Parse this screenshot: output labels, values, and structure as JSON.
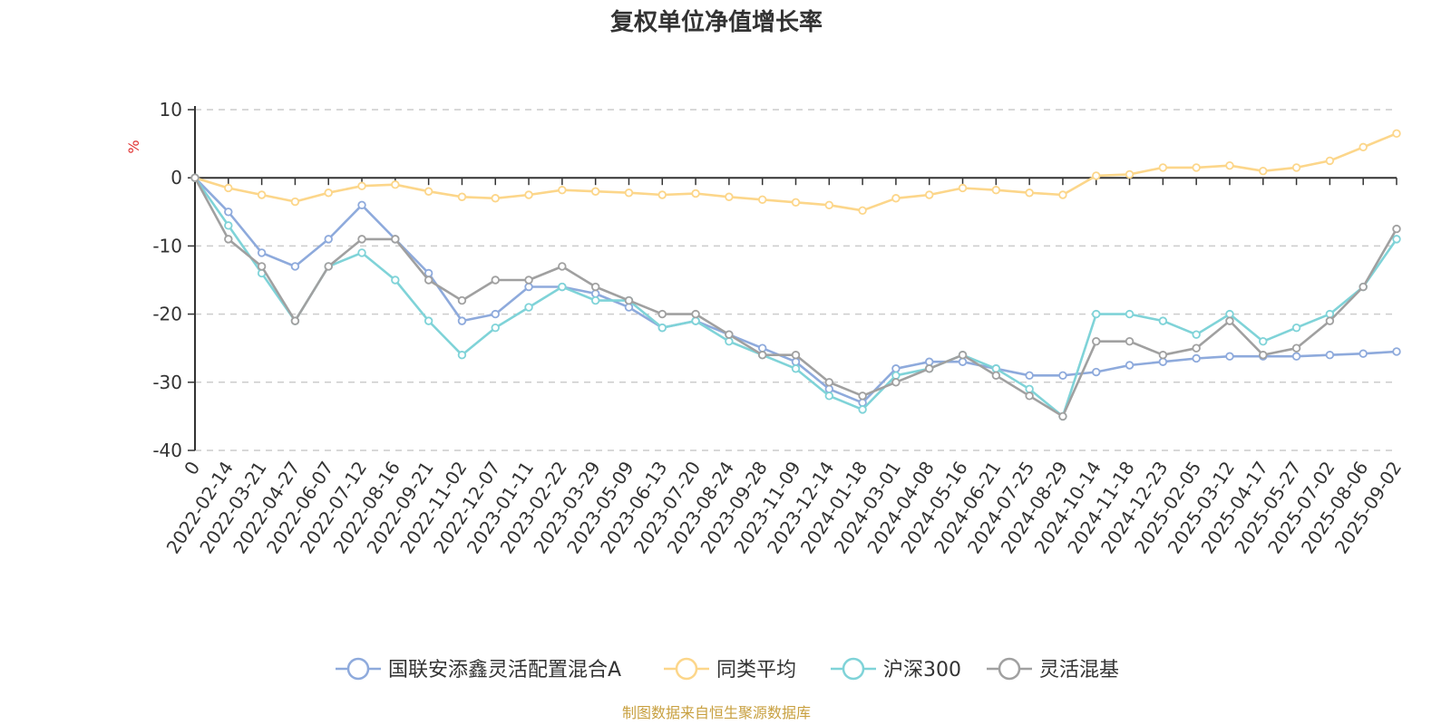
{
  "chart_data": {
    "type": "line",
    "title": "复权单位净值增长率",
    "ylabel": "%",
    "ylim": [
      -40,
      10
    ],
    "yticks": [
      10,
      0,
      -10,
      -20,
      -30,
      -40
    ],
    "grid": true,
    "legend_position": "bottom",
    "x_ticks": [
      "0",
      "2022-02-14",
      "2022-03-21",
      "2022-04-27",
      "2022-06-07",
      "2022-07-12",
      "2022-08-16",
      "2022-09-21",
      "2022-11-02",
      "2022-12-07",
      "2023-01-11",
      "2023-02-22",
      "2023-03-29",
      "2023-05-09",
      "2023-06-13",
      "2023-07-20",
      "2023-08-24",
      "2023-09-28",
      "2023-11-09",
      "2023-12-14",
      "2024-01-18",
      "2024-03-01",
      "2024-04-08",
      "2024-05-16",
      "2024-06-21",
      "2024-07-25",
      "2024-08-29",
      "2024-10-14",
      "2024-11-18",
      "2024-12-23",
      "2025-02-05",
      "2025-03-12",
      "2025-04-17",
      "2025-05-27",
      "2025-07-02",
      "2025-08-06",
      "2025-09-02"
    ],
    "series": [
      {
        "name": "国联安添鑫灵活配置混合A",
        "color": "#8eaadc",
        "values": [
          0,
          -5,
          -11,
          -13,
          -9,
          -4,
          -9,
          -14,
          -21,
          -20,
          -16,
          -16,
          -17,
          -19,
          -22,
          -21,
          -23,
          -25,
          -27,
          -31,
          -33,
          -28,
          -27,
          -27,
          -28,
          -29,
          -29,
          -28.5,
          -27.5,
          -27,
          -26.5,
          -26.2,
          -26.2,
          -26.2,
          -26.0,
          -25.8,
          -25.5
        ]
      },
      {
        "name": "同类平均",
        "color": "#fcd68a",
        "values": [
          0,
          -1.5,
          -2.5,
          -3.5,
          -2.2,
          -1.2,
          -1.0,
          -2.0,
          -2.8,
          -3.0,
          -2.5,
          -1.8,
          -2.0,
          -2.2,
          -2.5,
          -2.3,
          -2.8,
          -3.2,
          -3.6,
          -4.0,
          -4.8,
          -3.0,
          -2.5,
          -1.5,
          -1.8,
          -2.2,
          -2.5,
          0.3,
          0.5,
          1.5,
          1.5,
          1.8,
          1.0,
          1.5,
          2.5,
          4.5,
          6.5
        ]
      },
      {
        "name": "沪深300",
        "color": "#7fd3d8",
        "values": [
          0,
          -7,
          -14,
          -21,
          -13,
          -11,
          -15,
          -21,
          -26,
          -22,
          -19,
          -16,
          -18,
          -18,
          -22,
          -21,
          -24,
          -26,
          -28,
          -32,
          -34,
          -29,
          -28,
          -26,
          -28,
          -31,
          -35,
          -20,
          -20,
          -21,
          -23,
          -20,
          -24,
          -22,
          -20,
          -16,
          -9
        ]
      },
      {
        "name": "灵活混基",
        "color": "#a0a0a0",
        "values": [
          0,
          -9,
          -13,
          -21,
          -13,
          -9,
          -9,
          -15,
          -18,
          -15,
          -15,
          -13,
          -16,
          -18,
          -20,
          -20,
          -23,
          -26,
          -26,
          -30,
          -32,
          -30,
          -28,
          -26,
          -29,
          -32,
          -35,
          -24,
          -24,
          -26,
          -25,
          -21,
          -26,
          -25,
          -21,
          -16,
          -7.5
        ]
      }
    ]
  },
  "footer": {
    "source": "制图数据来自恒生聚源数据库"
  }
}
